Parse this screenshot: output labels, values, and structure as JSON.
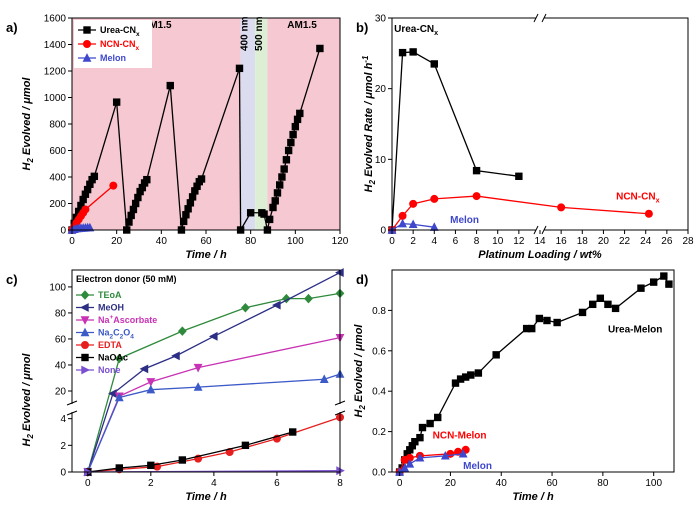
{
  "chart_data": [
    {
      "type": "line",
      "panel": "a)",
      "xlabel": "Time / h",
      "ylabel": "H2 Evolved / μmol",
      "xlim": [
        0,
        120
      ],
      "ylim": [
        0,
        1600
      ],
      "xticks": [
        0,
        20,
        40,
        60,
        80,
        100,
        120
      ],
      "yticks": [
        0,
        200,
        400,
        600,
        800,
        1000,
        1200,
        1400,
        1600
      ],
      "legend": "top-left",
      "regions": [
        {
          "label": "AM1.5",
          "x": [
            0,
            75.5
          ],
          "color": "#f5c8d2"
        },
        {
          "label": "400 nm",
          "x": [
            75.5,
            82
          ],
          "color": "#dcdcf0"
        },
        {
          "label": "500 nm",
          "x": [
            82,
            87.5
          ],
          "color": "#dcefd4"
        },
        {
          "label": "AM1.5",
          "x": [
            87.5,
            120
          ],
          "color": "#f5c8d2"
        }
      ],
      "series": [
        {
          "name": "Urea-CNx",
          "color": "#000000",
          "marker": "square",
          "segments": [
            [
              [
                0,
                0
              ],
              [
                1,
                50
              ],
              [
                2,
                95
              ],
              [
                3,
                140
              ],
              [
                4,
                185
              ],
              [
                5,
                230
              ],
              [
                6,
                270
              ],
              [
                7,
                305
              ],
              [
                8,
                345
              ],
              [
                9,
                380
              ],
              [
                10,
                405
              ],
              [
                20,
                965
              ]
            ],
            [
              [
                24.5,
                0
              ],
              [
                25.5,
                60
              ],
              [
                26.5,
                110
              ],
              [
                27.5,
                155
              ],
              [
                28.5,
                200
              ],
              [
                29.5,
                245
              ],
              [
                30.5,
                290
              ],
              [
                31.5,
                320
              ],
              [
                32.5,
                355
              ],
              [
                33.5,
                380
              ],
              [
                44,
                1090
              ]
            ],
            [
              [
                49,
                0
              ],
              [
                50,
                65
              ],
              [
                51,
                115
              ],
              [
                52,
                160
              ],
              [
                53,
                205
              ],
              [
                54,
                250
              ],
              [
                55,
                295
              ],
              [
                56,
                330
              ],
              [
                57,
                365
              ],
              [
                58,
                385
              ],
              [
                75,
                1220
              ]
            ],
            [
              [
                75.5,
                0
              ],
              [
                80,
                130
              ],
              [
                85,
                130
              ],
              [
                86,
                120
              ]
            ],
            [
              [
                87.5,
                0
              ],
              [
                88.5,
                80
              ],
              [
                90,
                170
              ],
              [
                91,
                220
              ],
              [
                92,
                280
              ],
              [
                93,
                340
              ],
              [
                94,
                400
              ],
              [
                95,
                460
              ],
              [
                96,
                530
              ],
              [
                97,
                600
              ],
              [
                98,
                660
              ],
              [
                99,
                720
              ],
              [
                100,
                780
              ],
              [
                101,
                835
              ],
              [
                102,
                880
              ],
              [
                111,
                1370
              ]
            ]
          ]
        },
        {
          "name": "NCN-CNx",
          "color": "#ff0000",
          "marker": "circle",
          "segments": [
            [
              [
                0,
                0
              ],
              [
                1,
                30
              ],
              [
                2,
                55
              ],
              [
                3,
                80
              ],
              [
                4,
                105
              ],
              [
                5,
                130
              ],
              [
                6,
                155
              ],
              [
                18.5,
                335
              ]
            ]
          ]
        },
        {
          "name": "Melon",
          "color": "#3f48cc",
          "marker": "triangle",
          "segments": [
            [
              [
                0,
                0
              ],
              [
                1,
                5
              ],
              [
                2,
                10
              ],
              [
                3,
                12
              ],
              [
                4,
                14
              ],
              [
                5,
                15
              ],
              [
                6,
                16
              ],
              [
                7,
                18
              ],
              [
                8,
                18
              ]
            ]
          ]
        }
      ]
    },
    {
      "type": "line",
      "panel": "b)",
      "xlabel": "Platinum Loading / wt%",
      "ylabel": "H2 Evolved Rate / μmol h-1",
      "xlim": [
        0,
        28
      ],
      "ylim": [
        0,
        30
      ],
      "xticks": [
        0,
        2,
        4,
        6,
        8,
        10,
        12,
        14,
        16,
        18,
        20,
        22,
        24,
        26,
        28
      ],
      "yticks": [
        0,
        10,
        20,
        30
      ],
      "axis_break": "between x = 12 and x = 16",
      "series": [
        {
          "name": "Urea-CNx",
          "color": "#000000",
          "marker": "square",
          "x": [
            0,
            1,
            2,
            4,
            8,
            12
          ],
          "y": [
            0,
            25.1,
            25.2,
            23.5,
            8.4,
            7.6
          ]
        },
        {
          "name": "NCN-CNx",
          "color": "#ff0000",
          "marker": "circle",
          "x": [
            0,
            1,
            2,
            4,
            8,
            16,
            24.3
          ],
          "y": [
            0,
            2.0,
            3.7,
            4.4,
            4.8,
            3.2,
            2.3
          ]
        },
        {
          "name": "Melon",
          "color": "#3f48cc",
          "marker": "triangle",
          "x": [
            0,
            1,
            2,
            4
          ],
          "y": [
            0,
            0.9,
            0.8,
            0.4
          ]
        }
      ]
    },
    {
      "type": "line",
      "panel": "c)",
      "xlabel": "Time / h",
      "ylabel": "H2 Evolved / μmol",
      "xlim": [
        -0.5,
        8
      ],
      "xticks": [
        0,
        2,
        4,
        6,
        8
      ],
      "y_segments": [
        {
          "range": [
            0,
            4.5
          ],
          "ticks": [
            0,
            2,
            4
          ]
        },
        {
          "range": [
            10,
            113
          ],
          "ticks": [
            20,
            40,
            60,
            80,
            100
          ]
        }
      ],
      "legend_title": "Electron donor (50 mM)",
      "legend": "top-left",
      "series": [
        {
          "name": "TEoA",
          "color": "#2f8a3c",
          "marker": "diamond",
          "x": [
            0,
            1,
            3,
            5,
            6.3,
            7,
            8
          ],
          "y": [
            0,
            45,
            66,
            84,
            91,
            91,
            95
          ]
        },
        {
          "name": "MeOH",
          "color": "#2d2f85",
          "marker": "tri-left",
          "x": [
            0,
            0.8,
            1.8,
            2.8,
            4,
            6,
            8
          ],
          "y": [
            0,
            18,
            37,
            47,
            62,
            86,
            111
          ]
        },
        {
          "name": "Na+Ascorbate",
          "color": "#c832b4",
          "marker": "tri-down",
          "x": [
            0,
            1,
            2,
            3.5,
            8
          ],
          "y": [
            0,
            16,
            27,
            38,
            61
          ]
        },
        {
          "name": "Na2C2O4",
          "color": "#3c5ac8",
          "marker": "triangle",
          "x": [
            0,
            1,
            2,
            3.5,
            7.5,
            8
          ],
          "y": [
            0,
            15,
            21,
            23,
            29,
            33
          ]
        },
        {
          "name": "EDTA",
          "color": "#e61e1e",
          "marker": "circle",
          "x": [
            0,
            1,
            2.2,
            3.5,
            4.5,
            6,
            8
          ],
          "y": [
            0,
            0.2,
            0.4,
            1.0,
            1.5,
            2.5,
            4.1
          ]
        },
        {
          "name": "NaOAc",
          "color": "#000000",
          "marker": "square",
          "x": [
            0,
            1,
            2,
            3,
            5,
            6.5
          ],
          "y": [
            0,
            0.3,
            0.5,
            0.9,
            2.0,
            3.0
          ]
        },
        {
          "name": "None",
          "color": "#7a4fd0",
          "marker": "tri-right",
          "x": [
            0,
            8
          ],
          "y": [
            0,
            0.1
          ]
        }
      ]
    },
    {
      "type": "line",
      "panel": "d)",
      "xlabel": "Time / h",
      "ylabel": "H2 Evolved / μmol",
      "xlim": [
        -3,
        108
      ],
      "ylim": [
        0,
        1.0
      ],
      "xticks": [
        0,
        20,
        40,
        60,
        80,
        100
      ],
      "yticks": [
        0.0,
        0.2,
        0.4,
        0.6,
        0.8
      ],
      "series": [
        {
          "name": "Urea-Melon",
          "color": "#000000",
          "marker": "square",
          "x": [
            0,
            1,
            2,
            3,
            4,
            5,
            6,
            8,
            9,
            12,
            15,
            22,
            24,
            26,
            28,
            31,
            38,
            50,
            52,
            55,
            58,
            62,
            72,
            76,
            79,
            82,
            85,
            95,
            100,
            104,
            106
          ],
          "y": [
            0,
            0.02,
            0.06,
            0.09,
            0.11,
            0.13,
            0.15,
            0.17,
            0.22,
            0.24,
            0.27,
            0.44,
            0.46,
            0.47,
            0.48,
            0.49,
            0.58,
            0.71,
            0.71,
            0.76,
            0.75,
            0.74,
            0.79,
            0.83,
            0.86,
            0.83,
            0.81,
            0.91,
            0.94,
            0.97,
            0.93
          ]
        },
        {
          "name": "NCN-Melon",
          "color": "#ff0000",
          "marker": "circle",
          "x": [
            0,
            2,
            4,
            8,
            20,
            23,
            26
          ],
          "y": [
            0,
            0.06,
            0.07,
            0.08,
            0.09,
            0.1,
            0.11
          ]
        },
        {
          "name": "Melon",
          "color": "#3f48cc",
          "marker": "triangle",
          "x": [
            0,
            2,
            4,
            8,
            18,
            25
          ],
          "y": [
            0,
            0.02,
            0.04,
            0.07,
            0.08,
            0.09
          ]
        }
      ]
    }
  ]
}
